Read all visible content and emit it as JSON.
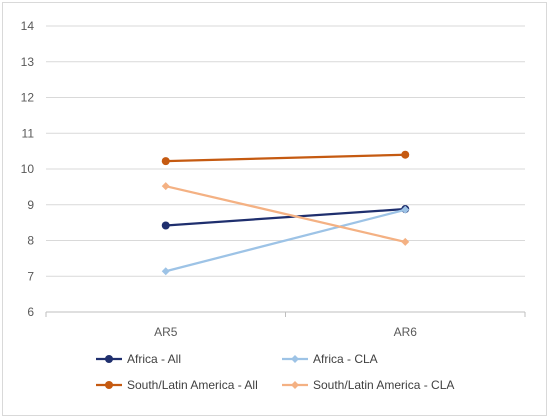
{
  "chart_data": {
    "type": "line",
    "title": "",
    "xlabel": "",
    "ylabel": "",
    "categories": [
      "AR5",
      "AR6"
    ],
    "ylim": [
      6,
      14
    ],
    "yticks": [
      6,
      7,
      8,
      9,
      10,
      11,
      12,
      13,
      14
    ],
    "grid": "horizontal",
    "legend_position": "bottom",
    "series": [
      {
        "name": "Africa - All",
        "values": [
          8.42,
          8.88
        ],
        "color": "#1f2f6e",
        "marker": "circle"
      },
      {
        "name": "Africa - CLA",
        "values": [
          7.14,
          8.86
        ],
        "color": "#9dc3e6",
        "marker": "diamond"
      },
      {
        "name": "South/Latin America - All",
        "values": [
          10.22,
          10.4
        ],
        "color": "#c55a11",
        "marker": "circle"
      },
      {
        "name": "South/Latin America - CLA",
        "values": [
          9.52,
          7.96
        ],
        "color": "#f4b183",
        "marker": "diamond"
      }
    ]
  }
}
